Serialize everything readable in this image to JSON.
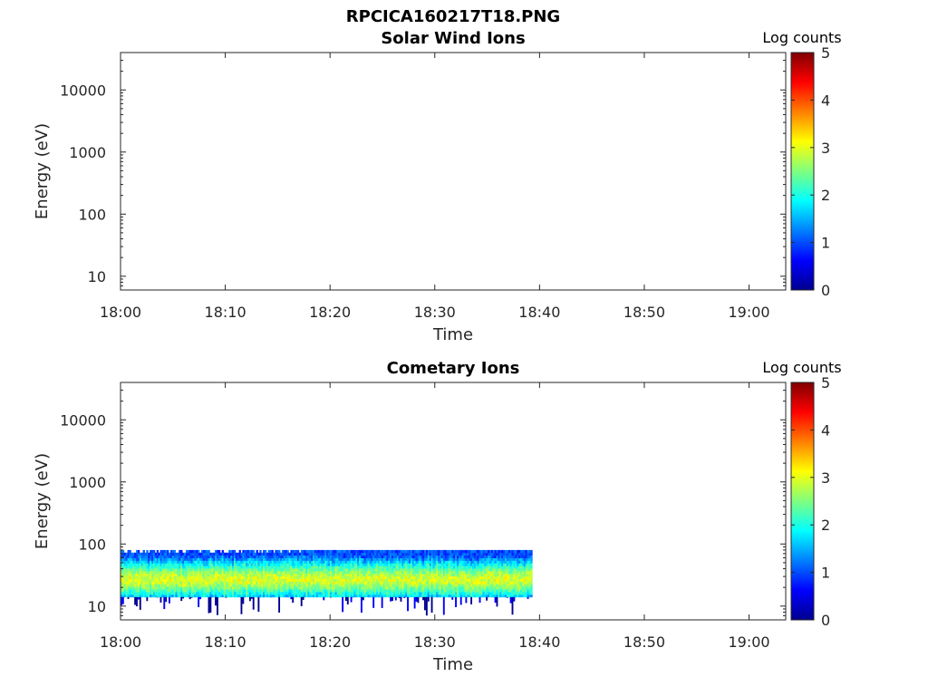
{
  "figure": {
    "title": "RPCICA160217T18.PNG"
  },
  "chart_data": [
    {
      "type": "heatmap",
      "title": "Solar Wind Ions",
      "xlabel": "Time",
      "ylabel": "Energy (eV)",
      "x_ticks": [
        "18:00",
        "18:10",
        "18:20",
        "18:30",
        "18:40",
        "18:50",
        "19:00"
      ],
      "x_range_minutes": [
        0,
        63.5
      ],
      "y_scale": "log",
      "y_ticks": [
        "10",
        "100",
        "1000",
        "10000"
      ],
      "y_range": [
        6,
        40000
      ],
      "colorbar": {
        "label": "Log counts",
        "range": [
          0,
          5
        ],
        "ticks": [
          "0",
          "1",
          "2",
          "3",
          "4",
          "5"
        ],
        "colormap": "jet"
      },
      "data": {
        "note": "",
        "time_range_minutes": null,
        "energy_range": null,
        "peak_energy": null
      }
    },
    {
      "type": "heatmap",
      "title": "Cometary Ions",
      "xlabel": "Time",
      "ylabel": "Energy (eV)",
      "x_ticks": [
        "18:00",
        "18:10",
        "18:20",
        "18:30",
        "18:40",
        "18:50",
        "19:00"
      ],
      "x_range_minutes": [
        0,
        63.5
      ],
      "y_scale": "log",
      "y_ticks": [
        "10",
        "100",
        "1000",
        "10000"
      ],
      "y_range": [
        6,
        40000
      ],
      "colorbar": {
        "label": "Log counts",
        "range": [
          0,
          5
        ],
        "ticks": [
          "0",
          "1",
          "2",
          "3",
          "4",
          "5"
        ],
        "colormap": "jet"
      },
      "data": {
        "time_range_minutes": [
          0,
          39.3
        ],
        "energy_range": [
          14,
          80
        ],
        "sparse_low_energy_min": 7,
        "peak_energy": 27,
        "peak_log_counts": 3.0,
        "edge_log_counts": 1.0
      }
    }
  ]
}
